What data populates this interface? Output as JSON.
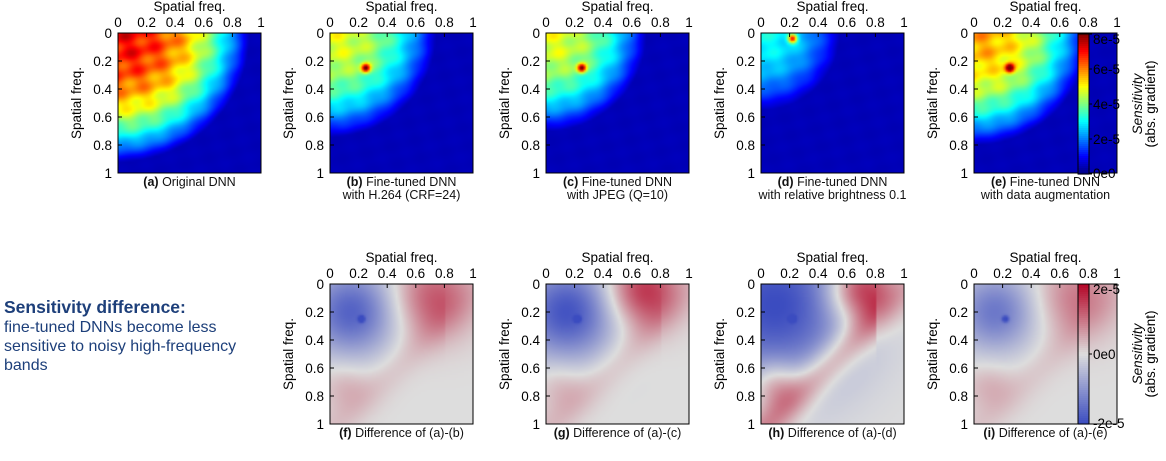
{
  "chart_data": [
    {
      "type": "heatmap",
      "id": "a",
      "label": "(a)",
      "caption_line1": "Original DNN",
      "caption_line2": "",
      "xlabel": "Spatial freq.",
      "ylabel": "Spatial freq.",
      "xticks": [
        "0",
        "0.2",
        "0.4",
        "0.6",
        "0.8",
        "1"
      ],
      "yticks": [
        "0",
        "0.2",
        "0.4",
        "0.6",
        "0.8",
        "1"
      ],
      "xlim": [
        0,
        1
      ],
      "ylim": [
        0,
        1
      ],
      "colormap": "jet",
      "clim": [
        0,
        8e-05
      ],
      "pattern": {
        "reach": 0.92,
        "spot": null,
        "notch": false,
        "peak": 7.5e-05
      }
    },
    {
      "type": "heatmap",
      "id": "b",
      "label": "(b)",
      "caption_line1": "Fine-tuned DNN",
      "caption_line2": "with H.264 (CRF=24)",
      "xlabel": "Spatial freq.",
      "ylabel": "Spatial freq.",
      "xticks": [
        "0",
        "0.2",
        "0.4",
        "0.6",
        "0.8",
        "1"
      ],
      "yticks": [
        "0",
        "0.2",
        "0.4",
        "0.6",
        "0.8",
        "1"
      ],
      "xlim": [
        0,
        1
      ],
      "ylim": [
        0,
        1
      ],
      "colormap": "jet",
      "clim": [
        0,
        8e-05
      ],
      "pattern": {
        "reach": 0.74,
        "spot": [
          0.25,
          0.25
        ],
        "notch": false,
        "peak": 5e-05
      }
    },
    {
      "type": "heatmap",
      "id": "c",
      "label": "(c)",
      "caption_line1": "Fine-tuned DNN",
      "caption_line2": "with JPEG (Q=10)",
      "xlabel": "Spatial freq.",
      "ylabel": "Spatial freq.",
      "xticks": [
        "0",
        "0.2",
        "0.4",
        "0.6",
        "0.8",
        "1"
      ],
      "yticks": [
        "0",
        "0.2",
        "0.4",
        "0.6",
        "0.8",
        "1"
      ],
      "xlim": [
        0,
        1
      ],
      "ylim": [
        0,
        1
      ],
      "colormap": "jet",
      "clim": [
        0,
        8e-05
      ],
      "pattern": {
        "reach": 0.7,
        "spot": [
          0.25,
          0.25
        ],
        "notch": false,
        "peak": 5e-05
      }
    },
    {
      "type": "heatmap",
      "id": "d",
      "label": "(d)",
      "caption_line1": "Fine-tuned DNN",
      "caption_line2": "with relative brightness 0.1",
      "xlabel": "Spatial freq.",
      "ylabel": "Spatial freq.",
      "xticks": [
        "0",
        "0.2",
        "0.4",
        "0.6",
        "0.8",
        "1"
      ],
      "yticks": [
        "0",
        "0.2",
        "0.4",
        "0.6",
        "0.8",
        "1"
      ],
      "xlim": [
        0,
        1
      ],
      "ylim": [
        0,
        1
      ],
      "colormap": "jet",
      "clim": [
        0,
        8e-05
      ],
      "pattern": {
        "reach": 0.55,
        "spot": [
          0.22,
          0.04
        ],
        "notch": false,
        "peak": 3e-05
      }
    },
    {
      "type": "heatmap",
      "id": "e",
      "label": "(e)",
      "caption_line1": "Fine-tuned DNN",
      "caption_line2": "with data augmentation",
      "xlabel": "Spatial freq.",
      "ylabel": "Spatial freq.",
      "xticks": [
        "0",
        "0.2",
        "0.4",
        "0.6",
        "0.8",
        "1"
      ],
      "yticks": [
        "0",
        "0.2",
        "0.4",
        "0.6",
        "0.8",
        "1"
      ],
      "xlim": [
        0,
        1
      ],
      "ylim": [
        0,
        1
      ],
      "colormap": "jet",
      "clim": [
        0,
        8e-05
      ],
      "pattern": {
        "reach": 0.8,
        "spot": [
          0.25,
          0.25
        ],
        "notch": false,
        "peak": 6e-05
      }
    },
    {
      "type": "heatmap",
      "id": "f",
      "label": "(f)",
      "caption_line1": "Difference of (a)-(b)",
      "caption_line2": "",
      "xlabel": "Spatial freq.",
      "ylabel": "Spatial freq.",
      "xticks": [
        "0",
        "0.2",
        "0.4",
        "0.6",
        "0.8",
        "1"
      ],
      "yticks": [
        "0",
        "0.2",
        "0.4",
        "0.6",
        "0.8",
        "1"
      ],
      "xlim": [
        0,
        1
      ],
      "ylim": [
        0,
        1
      ],
      "colormap": "coolwarm",
      "clim": [
        -2e-05,
        2e-05
      ],
      "pattern": {
        "blue": [
          0.15,
          0.2,
          0.22,
          0.85
        ],
        "red": [
          0.72,
          0.1,
          0.2,
          0.6
        ],
        "band": 0.25
      }
    },
    {
      "type": "heatmap",
      "id": "g",
      "label": "(g)",
      "caption_line1": "Difference of (a)-(c)",
      "caption_line2": "",
      "xlabel": "Spatial freq.",
      "ylabel": "Spatial freq.",
      "xticks": [
        "0",
        "0.2",
        "0.4",
        "0.6",
        "0.8",
        "1"
      ],
      "yticks": [
        "0",
        "0.2",
        "0.4",
        "0.6",
        "0.8",
        "1"
      ],
      "xlim": [
        0,
        1
      ],
      "ylim": [
        0,
        1
      ],
      "colormap": "coolwarm",
      "clim": [
        -2e-05,
        2e-05
      ],
      "pattern": {
        "blue": [
          0.15,
          0.2,
          0.24,
          0.95
        ],
        "red": [
          0.68,
          0.05,
          0.18,
          0.8
        ],
        "band": 0.3
      }
    },
    {
      "type": "heatmap",
      "id": "h",
      "label": "(h)",
      "caption_line1": "Difference of (a)-(d)",
      "caption_line2": "",
      "xlabel": "Spatial freq.",
      "ylabel": "Spatial freq.",
      "xticks": [
        "0",
        "0.2",
        "0.4",
        "0.6",
        "0.8",
        "1"
      ],
      "yticks": [
        "0",
        "0.2",
        "0.4",
        "0.6",
        "0.8",
        "1"
      ],
      "xlim": [
        0,
        1
      ],
      "ylim": [
        0,
        1
      ],
      "colormap": "coolwarm",
      "clim": [
        -2e-05,
        2e-05
      ],
      "pattern": {
        "blue": [
          0.1,
          0.15,
          0.4,
          1.0
        ],
        "red": [
          0.7,
          0.05,
          0.16,
          0.95
        ],
        "band": 0.9
      }
    },
    {
      "type": "heatmap",
      "id": "i",
      "label": "(i)",
      "caption_line1": "Difference of (a)-(e)",
      "caption_line2": "",
      "xlabel": "Spatial freq.",
      "ylabel": "Spatial freq.",
      "xticks": [
        "0",
        "0.2",
        "0.4",
        "0.6",
        "0.8",
        "1"
      ],
      "yticks": [
        "0",
        "0.2",
        "0.4",
        "0.6",
        "0.8",
        "1"
      ],
      "xlim": [
        0,
        1
      ],
      "ylim": [
        0,
        1
      ],
      "colormap": "coolwarm",
      "clim": [
        -2e-05,
        2e-05
      ],
      "pattern": {
        "blue": [
          0.15,
          0.2,
          0.2,
          0.7
        ],
        "red": [
          0.72,
          0.1,
          0.2,
          0.45
        ],
        "band": 0.2
      }
    }
  ],
  "colorbars": [
    {
      "id": "top",
      "colormap": "jet",
      "ticks": [
        "8e-5",
        "6e-5",
        "4e-5",
        "2e-5",
        "0e0"
      ],
      "tick_values": [
        8e-05,
        6e-05,
        4e-05,
        2e-05,
        0
      ],
      "range": [
        0,
        8e-05
      ],
      "label_line1": "Sensitivity",
      "label_line2": "(abs. gradient)"
    },
    {
      "id": "bottom",
      "colormap": "coolwarm",
      "ticks": [
        "2e-5",
        "0e0",
        "-2e-5"
      ],
      "tick_values": [
        2e-05,
        0,
        -2e-05
      ],
      "range": [
        -2e-05,
        2e-05
      ],
      "label_line1": "Sensitivity",
      "label_line2": "(abs. gradient)"
    }
  ],
  "annotation": {
    "heading": "Sensitivity difference",
    "colon": ":",
    "body": "fine-tuned DNNs become less sensitive to noisy high-frequency bands"
  },
  "colors": {
    "annotation_text": "#1d3f7a",
    "neutral": "#dddddd"
  }
}
